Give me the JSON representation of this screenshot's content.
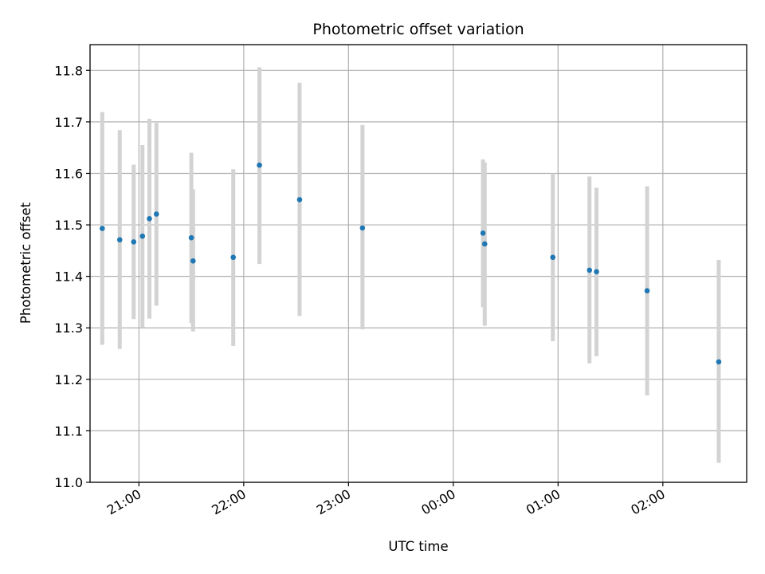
{
  "chart_data": {
    "type": "scatter",
    "title": "Photometric offset variation",
    "xlabel": "UTC time",
    "ylabel": "Photometric offset",
    "x_axis": {
      "kind": "time",
      "range": [
        "20:32",
        "02:48"
      ],
      "ticks": [
        "21:00",
        "22:00",
        "23:00",
        "00:00",
        "01:00",
        "02:00"
      ]
    },
    "y_axis": {
      "range": [
        11.0,
        11.85
      ],
      "ticks": [
        "11.0",
        "11.1",
        "11.2",
        "11.3",
        "11.4",
        "11.5",
        "11.6",
        "11.7",
        "11.8"
      ]
    },
    "grid": true,
    "legend": "none",
    "colors": {
      "point": "#1f77b4",
      "errorbar": "#d3d3d3",
      "grid": "#b0b0b0"
    },
    "points": [
      {
        "x": "20:39",
        "y": 11.493,
        "ylo": 11.267,
        "yhi": 11.719
      },
      {
        "x": "20:49",
        "y": 11.471,
        "ylo": 11.259,
        "yhi": 11.684
      },
      {
        "x": "20:57",
        "y": 11.467,
        "ylo": 11.317,
        "yhi": 11.617
      },
      {
        "x": "21:02",
        "y": 11.478,
        "ylo": 11.301,
        "yhi": 11.655
      },
      {
        "x": "21:06",
        "y": 11.512,
        "ylo": 11.318,
        "yhi": 11.706
      },
      {
        "x": "21:10",
        "y": 11.521,
        "ylo": 11.343,
        "yhi": 11.698
      },
      {
        "x": "21:30",
        "y": 11.475,
        "ylo": 11.309,
        "yhi": 11.64
      },
      {
        "x": "21:31",
        "y": 11.43,
        "ylo": 11.293,
        "yhi": 11.569
      },
      {
        "x": "21:54",
        "y": 11.437,
        "ylo": 11.265,
        "yhi": 11.608
      },
      {
        "x": "22:09",
        "y": 11.616,
        "ylo": 11.424,
        "yhi": 11.806
      },
      {
        "x": "22:32",
        "y": 11.549,
        "ylo": 11.323,
        "yhi": 11.776
      },
      {
        "x": "23:08",
        "y": 11.494,
        "ylo": 11.297,
        "yhi": 11.694
      },
      {
        "x": "00:17",
        "y": 11.484,
        "ylo": 11.34,
        "yhi": 11.627
      },
      {
        "x": "00:18",
        "y": 11.463,
        "ylo": 11.304,
        "yhi": 11.621
      },
      {
        "x": "00:57",
        "y": 11.437,
        "ylo": 11.274,
        "yhi": 11.6
      },
      {
        "x": "01:18",
        "y": 11.412,
        "ylo": 11.231,
        "yhi": 11.594
      },
      {
        "x": "01:22",
        "y": 11.409,
        "ylo": 11.245,
        "yhi": 11.572
      },
      {
        "x": "01:51",
        "y": 11.372,
        "ylo": 11.169,
        "yhi": 11.575
      },
      {
        "x": "02:32",
        "y": 11.234,
        "ylo": 11.038,
        "yhi": 11.432
      }
    ]
  }
}
